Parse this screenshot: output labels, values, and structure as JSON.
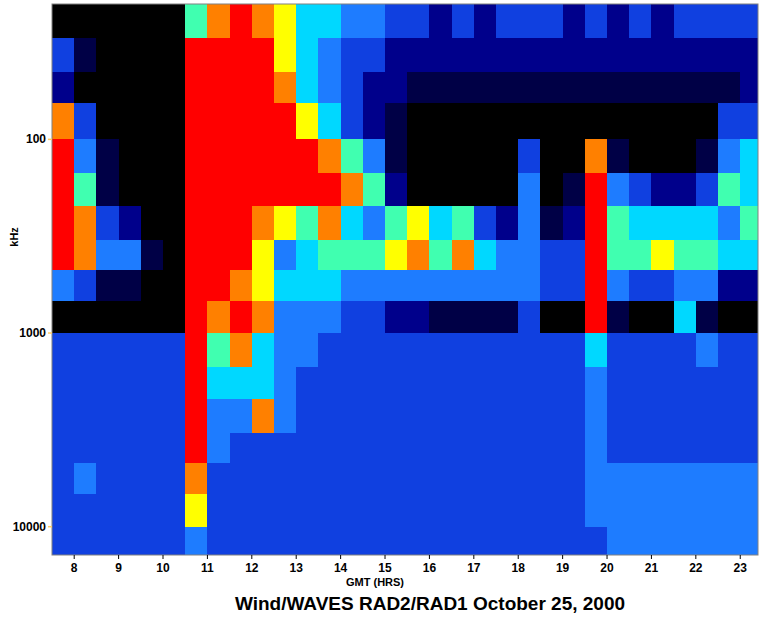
{
  "chart_data": {
    "type": "heatmap",
    "title": "Wind/WAVES RAD2/RAD1 October 25, 2000",
    "x_label": "GMT (HRS)",
    "y_label": "kHz",
    "log": "y",
    "grid": false,
    "xlim": [
      7.5,
      23.4
    ],
    "ylim": [
      20,
      14000
    ],
    "xticks": [
      8,
      9,
      10,
      11,
      12,
      13,
      14,
      15,
      16,
      17,
      18,
      19,
      20,
      21,
      22,
      23
    ],
    "yticks": [
      100,
      1000,
      10000
    ],
    "zlim": [
      0,
      10
    ],
    "x_edges": [
      7.5,
      8,
      8.5,
      9,
      9.5,
      10,
      10.5,
      11,
      11.5,
      12,
      12.5,
      13,
      13.5,
      14,
      14.5,
      15,
      15.5,
      16,
      16.5,
      17,
      17.5,
      18,
      18.5,
      19,
      19.5,
      20,
      20.5,
      21,
      21.5,
      22,
      22.5,
      23,
      23.5
    ],
    "y_edges": [
      20,
      30,
      45,
      65,
      100,
      150,
      220,
      330,
      470,
      680,
      1000,
      1500,
      2200,
      3300,
      4700,
      6800,
      10000,
      14000
    ],
    "cells": [
      [
        0,
        0,
        0,
        0,
        0,
        0,
        6,
        8,
        9,
        8,
        7,
        5,
        5,
        4,
        4,
        3,
        3,
        2,
        3,
        2,
        3,
        3,
        3,
        2,
        3,
        2,
        3,
        2,
        3,
        3,
        3,
        3
      ],
      [
        3,
        1,
        0,
        0,
        0,
        0,
        9,
        9,
        9,
        9,
        7,
        5,
        4,
        3,
        3,
        2,
        2,
        2,
        2,
        2,
        2,
        2,
        2,
        2,
        2,
        2,
        2,
        2,
        2,
        2,
        2,
        2
      ],
      [
        2,
        0,
        0,
        0,
        0,
        0,
        9,
        9,
        9,
        9,
        8,
        5,
        4,
        3,
        2,
        2,
        1,
        1,
        1,
        1,
        1,
        1,
        1,
        1,
        1,
        1,
        1,
        1,
        1,
        1,
        1,
        2
      ],
      [
        8,
        3,
        0,
        0,
        0,
        0,
        9,
        9,
        9,
        9,
        9,
        7,
        5,
        3,
        2,
        1,
        0,
        0,
        0,
        0,
        0,
        0,
        0,
        0,
        0,
        0,
        0,
        0,
        0,
        0,
        3,
        3
      ],
      [
        9,
        4,
        1,
        0,
        0,
        0,
        9,
        9,
        9,
        9,
        9,
        9,
        8,
        6,
        4,
        1,
        0,
        0,
        0,
        0,
        0,
        3,
        0,
        0,
        8,
        1,
        0,
        0,
        0,
        1,
        4,
        5
      ],
      [
        9,
        6,
        1,
        0,
        0,
        0,
        9,
        9,
        9,
        9,
        9,
        9,
        9,
        8,
        6,
        2,
        0,
        0,
        0,
        0,
        0,
        4,
        0,
        1,
        9,
        4,
        3,
        2,
        2,
        3,
        6,
        5
      ],
      [
        9,
        8,
        3,
        2,
        0,
        0,
        9,
        9,
        9,
        8,
        7,
        6,
        8,
        5,
        4,
        6,
        7,
        5,
        6,
        3,
        2,
        4,
        1,
        2,
        9,
        6,
        5,
        5,
        5,
        5,
        4,
        6
      ],
      [
        9,
        8,
        4,
        4,
        1,
        0,
        9,
        9,
        9,
        7,
        4,
        5,
        6,
        6,
        6,
        7,
        8,
        6,
        8,
        5,
        4,
        4,
        3,
        3,
        9,
        6,
        6,
        7,
        6,
        6,
        5,
        5
      ],
      [
        4,
        3,
        1,
        1,
        0,
        0,
        9,
        9,
        8,
        7,
        5,
        5,
        5,
        4,
        4,
        4,
        4,
        4,
        4,
        4,
        4,
        4,
        3,
        3,
        9,
        4,
        3,
        3,
        4,
        4,
        2,
        2
      ],
      [
        0,
        0,
        0,
        0,
        0,
        0,
        9,
        8,
        9,
        8,
        4,
        4,
        4,
        3,
        3,
        2,
        2,
        1,
        1,
        1,
        1,
        3,
        0,
        0,
        9,
        1,
        0,
        0,
        5,
        1,
        0,
        0
      ],
      [
        3,
        3,
        3,
        3,
        3,
        3,
        9,
        6,
        8,
        5,
        4,
        4,
        3,
        3,
        3,
        3,
        3,
        3,
        3,
        3,
        3,
        3,
        3,
        3,
        5,
        3,
        3,
        3,
        3,
        4,
        3,
        3
      ],
      [
        3,
        3,
        3,
        3,
        3,
        3,
        9,
        5,
        5,
        5,
        4,
        3,
        3,
        3,
        3,
        3,
        3,
        3,
        3,
        3,
        3,
        3,
        3,
        3,
        4,
        3,
        3,
        3,
        3,
        3,
        3,
        3
      ],
      [
        3,
        3,
        3,
        3,
        3,
        3,
        9,
        4,
        4,
        8,
        4,
        3,
        3,
        3,
        3,
        3,
        3,
        3,
        3,
        3,
        3,
        3,
        3,
        3,
        4,
        3,
        3,
        3,
        3,
        3,
        3,
        3
      ],
      [
        3,
        3,
        3,
        3,
        3,
        3,
        9,
        4,
        3,
        3,
        3,
        3,
        3,
        3,
        3,
        3,
        3,
        3,
        3,
        3,
        3,
        3,
        3,
        3,
        4,
        3,
        3,
        3,
        3,
        3,
        3,
        3
      ],
      [
        3,
        4,
        3,
        3,
        3,
        3,
        8,
        3,
        3,
        3,
        3,
        3,
        3,
        3,
        3,
        3,
        3,
        3,
        3,
        3,
        3,
        3,
        3,
        3,
        4,
        4,
        4,
        4,
        4,
        4,
        4,
        4
      ],
      [
        3,
        3,
        3,
        3,
        3,
        3,
        7,
        3,
        3,
        3,
        3,
        3,
        3,
        3,
        3,
        3,
        3,
        3,
        3,
        3,
        3,
        3,
        3,
        3,
        4,
        4,
        4,
        4,
        4,
        4,
        4,
        4
      ],
      [
        3,
        3,
        3,
        3,
        3,
        3,
        4,
        3,
        3,
        3,
        3,
        3,
        3,
        3,
        3,
        3,
        3,
        3,
        3,
        3,
        3,
        3,
        3,
        3,
        3,
        4,
        4,
        4,
        4,
        4,
        4,
        4
      ]
    ]
  }
}
